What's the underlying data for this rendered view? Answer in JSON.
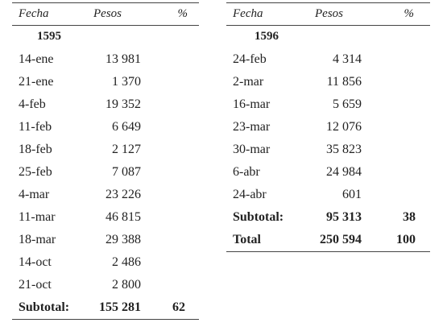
{
  "headers": {
    "fecha": "Fecha",
    "pesos": "Pesos",
    "pct": "%"
  },
  "left": {
    "year": "1595",
    "rows": [
      {
        "fecha": "14-ene",
        "pesos": "13 981"
      },
      {
        "fecha": "21-ene",
        "pesos": "1 370"
      },
      {
        "fecha": "4-feb",
        "pesos": "19 352"
      },
      {
        "fecha": "11-feb",
        "pesos": "6 649"
      },
      {
        "fecha": "18-feb",
        "pesos": "2 127"
      },
      {
        "fecha": "25-feb",
        "pesos": "7 087"
      },
      {
        "fecha": "4-mar",
        "pesos": "23 226"
      },
      {
        "fecha": "11-mar",
        "pesos": "46 815"
      },
      {
        "fecha": "18-mar",
        "pesos": "29 388"
      },
      {
        "fecha": "14-oct",
        "pesos": "2 486"
      },
      {
        "fecha": "21-oct",
        "pesos": "2 800"
      }
    ],
    "subtotal": {
      "label": "Subtotal:",
      "pesos": "155 281",
      "pct": "62"
    }
  },
  "right": {
    "year": "1596",
    "rows": [
      {
        "fecha": "24-feb",
        "pesos": "4 314"
      },
      {
        "fecha": "2-mar",
        "pesos": "11 856"
      },
      {
        "fecha": "16-mar",
        "pesos": "5 659"
      },
      {
        "fecha": "23-mar",
        "pesos": "12 076"
      },
      {
        "fecha": "30-mar",
        "pesos": "35 823"
      },
      {
        "fecha": "6-abr",
        "pesos": "24 984"
      },
      {
        "fecha": "24-abr",
        "pesos": "601"
      }
    ],
    "subtotal": {
      "label": "Subtotal:",
      "pesos": "95 313",
      "pct": "38"
    },
    "total": {
      "label": "Total",
      "pesos": "250 594",
      "pct": "100"
    }
  }
}
